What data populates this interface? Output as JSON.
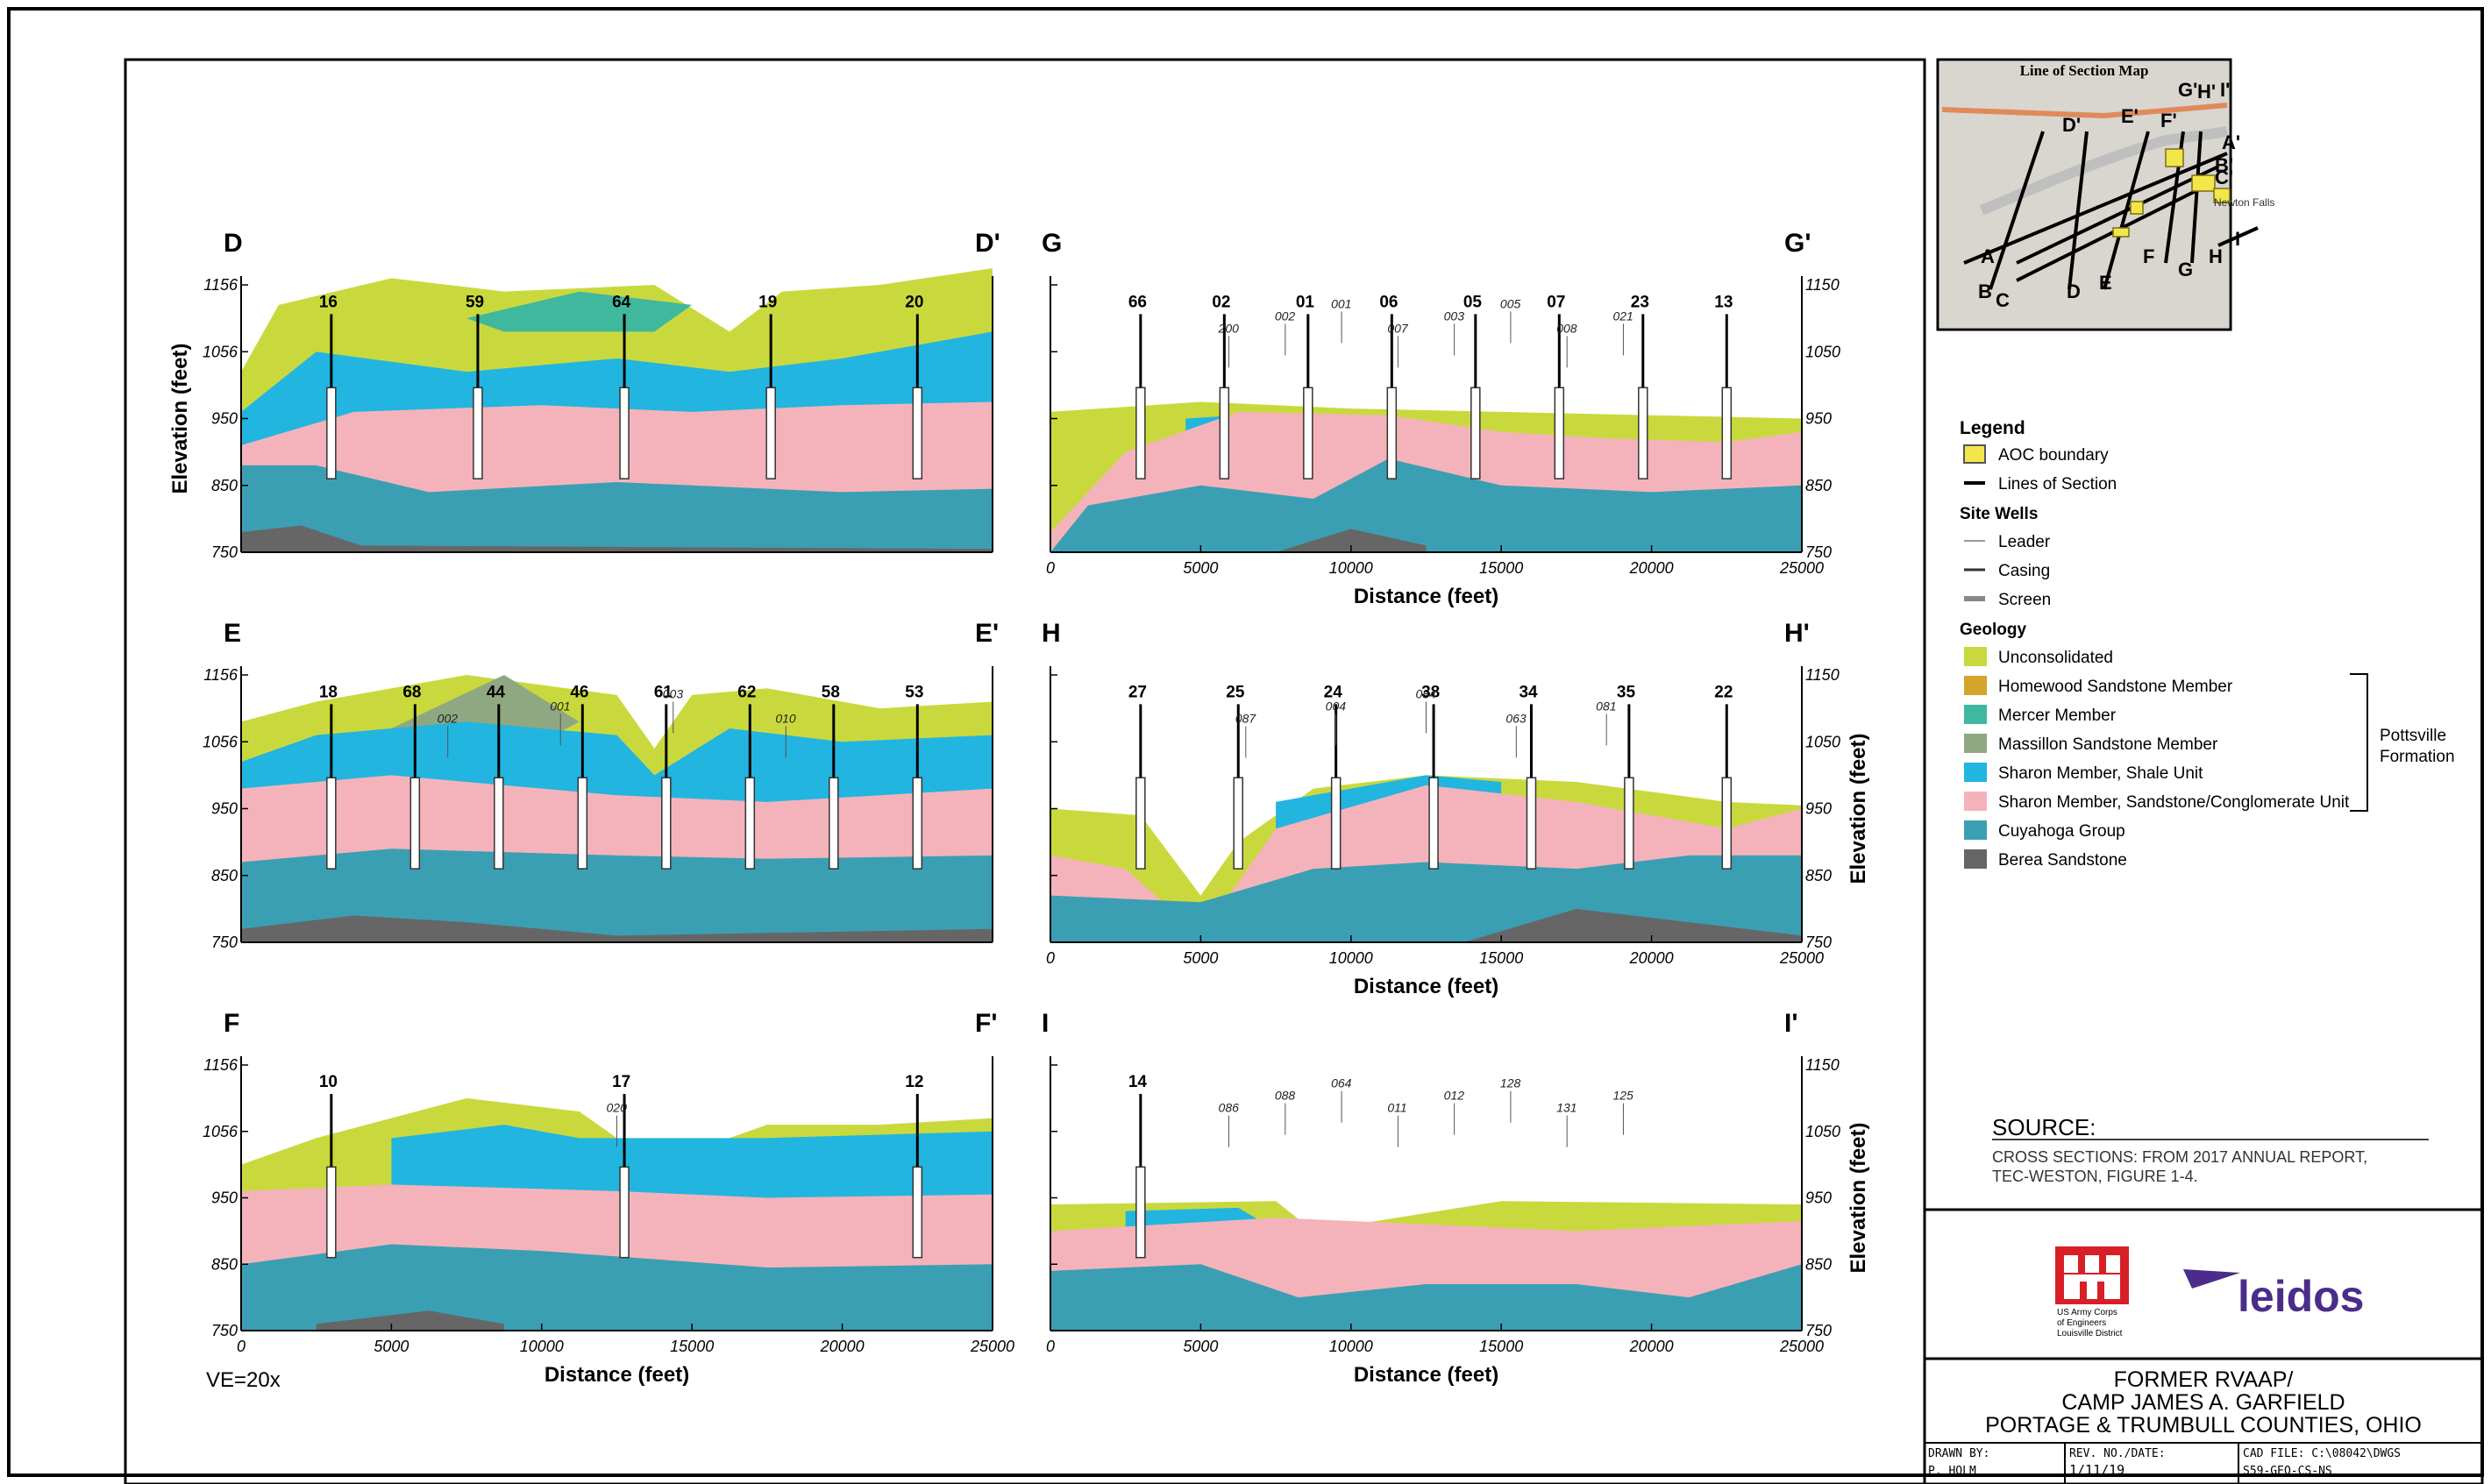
{
  "sections": [
    {
      "id": "D",
      "label_left": "D",
      "label_right": "D'",
      "y_axis_ticks": [
        "1156",
        "1056",
        "950",
        "850",
        "750"
      ],
      "y_axis_title": "Elevation (feet)",
      "wells": [
        {
          "id": "16",
          "italic": false,
          "label": "16"
        },
        {
          "id": "59",
          "italic": false,
          "label": "59"
        },
        {
          "id": "64",
          "italic": false,
          "label": "64"
        },
        {
          "id": "19",
          "italic": false,
          "label": "19"
        },
        {
          "id": "20",
          "italic": false,
          "label": "20"
        }
      ]
    },
    {
      "id": "G",
      "label_left": "G",
      "label_right": "G'",
      "y_axis_ticks": [
        "1150",
        "1050",
        "950",
        "850",
        "750"
      ],
      "x_axis_ticks": [
        "0",
        "5000",
        "10000",
        "15000",
        "20000",
        "25000"
      ],
      "x_axis_title": "Distance (feet)",
      "wells": [
        {
          "label": "200",
          "italic": true
        },
        {
          "label": "66",
          "italic": false
        },
        {
          "label": "02",
          "italic": false
        },
        {
          "label": "01",
          "italic": false
        },
        {
          "label": "002",
          "italic": true
        },
        {
          "label": "001",
          "italic": true
        },
        {
          "label": "06",
          "italic": false
        },
        {
          "label": "05",
          "italic": false
        },
        {
          "label": "007",
          "italic": true
        },
        {
          "label": "003",
          "italic": true
        },
        {
          "label": "005",
          "italic": true
        },
        {
          "label": "008",
          "italic": true
        },
        {
          "label": "07",
          "italic": false
        },
        {
          "label": "23",
          "italic": false
        },
        {
          "label": "13",
          "italic": false
        },
        {
          "label": "021",
          "italic": true
        }
      ]
    },
    {
      "id": "E",
      "label_left": "E",
      "label_right": "E'",
      "y_axis_ticks": [
        "1156",
        "1056",
        "950",
        "850",
        "750"
      ],
      "wells": [
        {
          "label": "18",
          "italic": false
        },
        {
          "label": "68",
          "italic": false
        },
        {
          "label": "002",
          "italic": true
        },
        {
          "label": "44",
          "italic": false
        },
        {
          "label": "46",
          "italic": false
        },
        {
          "label": "001",
          "italic": true
        },
        {
          "label": "003",
          "italic": true
        },
        {
          "label": "61",
          "italic": false
        },
        {
          "label": "62",
          "italic": false
        },
        {
          "label": "010",
          "italic": true
        },
        {
          "label": "58",
          "italic": false
        },
        {
          "label": "53",
          "italic": false
        }
      ]
    },
    {
      "id": "H",
      "label_left": "H",
      "label_right": "H'",
      "y_axis_ticks": [
        "1150",
        "1050",
        "950",
        "850",
        "750"
      ],
      "y_axis_title": "Elevation (feet)",
      "x_axis_ticks": [
        "0",
        "5000",
        "10000",
        "15000",
        "20000",
        "25000"
      ],
      "x_axis_title": "Distance (feet)",
      "wells": [
        {
          "label": "087",
          "italic": true
        },
        {
          "label": "004",
          "italic": true
        },
        {
          "label": "27",
          "italic": false
        },
        {
          "label": "25",
          "italic": false
        },
        {
          "label": "24",
          "italic": false
        },
        {
          "label": "084",
          "italic": true
        },
        {
          "label": "063",
          "italic": true
        },
        {
          "label": "081",
          "italic": true
        },
        {
          "label": "38",
          "italic": false
        },
        {
          "label": "34",
          "italic": false
        },
        {
          "label": "35",
          "italic": false
        },
        {
          "label": "22",
          "italic": false
        }
      ]
    },
    {
      "id": "F",
      "label_left": "F",
      "label_right": "F'",
      "y_axis_ticks": [
        "1156",
        "1056",
        "950",
        "850",
        "750"
      ],
      "x_axis_ticks": [
        "0",
        "5000",
        "10000",
        "15000",
        "20000",
        "25000"
      ],
      "x_axis_title": "Distance (feet)",
      "wells": [
        {
          "label": "10",
          "italic": false
        },
        {
          "label": "17",
          "italic": false
        },
        {
          "label": "020",
          "italic": true
        },
        {
          "label": "12",
          "italic": false
        }
      ]
    },
    {
      "id": "I",
      "label_left": "I",
      "label_right": "I'",
      "y_axis_ticks": [
        "1150",
        "1050",
        "950",
        "850",
        "750"
      ],
      "y_axis_title": "Elevation (feet)",
      "x_axis_ticks": [
        "0",
        "5000",
        "10000",
        "15000",
        "20000",
        "25000"
      ],
      "x_axis_title": "Distance (feet)",
      "wells": [
        {
          "label": "086",
          "italic": true
        },
        {
          "label": "088",
          "italic": true
        },
        {
          "label": "064",
          "italic": true
        },
        {
          "label": "011",
          "italic": true
        },
        {
          "label": "012",
          "italic": true
        },
        {
          "label": "14",
          "italic": false
        },
        {
          "label": "128",
          "italic": true
        },
        {
          "label": "131",
          "italic": true
        },
        {
          "label": "125",
          "italic": true
        }
      ]
    }
  ],
  "ve_note": "VE=20x",
  "map": {
    "title": "Line of Section Map",
    "section_letters": [
      "A",
      "B",
      "C",
      "D",
      "E",
      "F",
      "G",
      "H",
      "I",
      "A'",
      "B'",
      "C'",
      "D'",
      "E'",
      "F'",
      "G'",
      "H'",
      "I'"
    ],
    "place_labels": [
      "Newton Falls"
    ]
  },
  "legend": {
    "title": "Legend",
    "items": [
      {
        "label": "AOC boundary",
        "kind": "aoc"
      },
      {
        "label": "Lines of Section",
        "kind": "line"
      }
    ],
    "wells_title": "Site Wells",
    "well_items": [
      {
        "label": "Leader",
        "kind": "leader"
      },
      {
        "label": "Casing",
        "kind": "casing"
      },
      {
        "label": "Screen",
        "kind": "screen"
      }
    ],
    "geology_title": "Geology",
    "geology": [
      {
        "label": "Unconsolidated",
        "color": "#c9d93d"
      },
      {
        "label": "Homewood Sandstone Member",
        "color": "#d4a52a"
      },
      {
        "label": "Mercer Member",
        "color": "#3fb89e"
      },
      {
        "label": "Massillon Sandstone Member",
        "color": "#8fa882"
      },
      {
        "label": "Sharon Member, Shale Unit",
        "color": "#22b5e0"
      },
      {
        "label": "Sharon Member, Sandstone/Conglomerate Unit",
        "color": "#f4b3ba"
      },
      {
        "label": "Cuyahoga Group",
        "color": "#3b9fb3"
      },
      {
        "label": "Berea Sandstone",
        "color": "#666666"
      }
    ],
    "formation_label_1": "Pottsville",
    "formation_label_2": "Formation"
  },
  "source": {
    "title": "SOURCE:",
    "line1": "CROSS SECTIONS: FROM  2017 ANNUAL REPORT,",
    "line2": "TEC-WESTON, FIGURE 1-4."
  },
  "title_block": {
    "usace_lines": [
      "US Army Corps",
      "of Engineers",
      "Louisville District"
    ],
    "leidos": "leidos",
    "project_line1": "FORMER RVAAP/",
    "project_line2": "CAMP JAMES A. GARFIELD",
    "project_line3": "PORTAGE & TRUMBULL COUNTIES, OHIO",
    "drawn_by_label": "DRAWN BY:",
    "drawn_by": "P. HOLM",
    "rev_label": "REV. NO./DATE:",
    "rev": "1/11/19",
    "cad_label": "CAD FILE: C:\\08042\\DWGS",
    "cad_file": "S59-GEO-CS-NS"
  },
  "colors": {
    "unconsolidated": "#c9d93d",
    "homewood": "#d4a52a",
    "mercer": "#3fb89e",
    "massillon": "#8fa882",
    "shale": "#22b5e0",
    "sandstone": "#f4b3ba",
    "cuyahoga": "#3b9fb3",
    "berea": "#666666"
  }
}
